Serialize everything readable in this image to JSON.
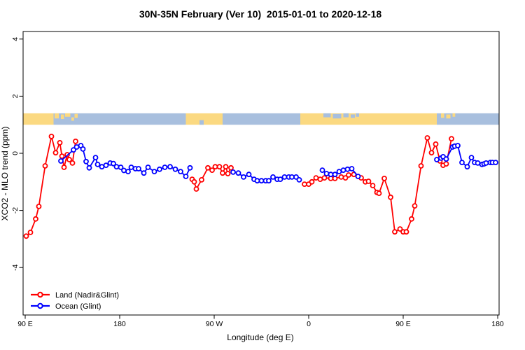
{
  "title": "30N-35N February (Ver 10)  2015-01-01 to 2020-12-18",
  "legend": {
    "items": [
      {
        "label": "Land (Nadir&Glint)",
        "color": "#ff0000"
      },
      {
        "label": "Ocean (Glint)",
        "color": "#0000ff"
      }
    ]
  },
  "chart_data": {
    "type": "line",
    "title": "30N-35N February (Ver 10)  2015-01-01 to 2020-12-18",
    "xlabel": "Longitude (deg E)",
    "ylabel": "XCO2 - MLO trend (ppm)",
    "xlim": [
      88,
      542
    ],
    "ylim": [
      -5.7,
      4.3
    ],
    "grid": false,
    "legend_position": "bottom-left-inside",
    "x_ticks": [
      {
        "lon": 90,
        "label": "90 E"
      },
      {
        "lon": 180,
        "label": "180"
      },
      {
        "lon": 270,
        "label": "90 W"
      },
      {
        "lon": 360,
        "label": "0"
      },
      {
        "lon": 450,
        "label": "90 E"
      },
      {
        "lon": 540,
        "label": "180"
      }
    ],
    "y_ticks": [
      {
        "v": 4,
        "label": "4"
      },
      {
        "v": 2,
        "label": "2"
      },
      {
        "v": 0,
        "label": "0"
      },
      {
        "v": -2,
        "label": "-2"
      },
      {
        "v": -4,
        "label": "-4"
      }
    ],
    "map_strip": {
      "description": "land/ocean mask band for 30N-35N latitude plotted between y=1.0 and y=1.4",
      "y_range": [
        1.0,
        1.4
      ],
      "land_color": "#fbd981",
      "ocean_color": "#a8bfde",
      "segments": [
        [
          88,
          117,
          "land"
        ],
        [
          117,
          243,
          "ocean"
        ],
        [
          243,
          278,
          "land"
        ],
        [
          278,
          352,
          "ocean"
        ],
        [
          352,
          482,
          "land"
        ],
        [
          482,
          541,
          "ocean"
        ]
      ],
      "land_patches": [
        [
          118,
          0.0,
          4,
          0.45
        ],
        [
          124,
          0.1,
          3,
          0.4
        ],
        [
          128,
          0.0,
          5,
          0.3
        ],
        [
          134,
          0.35,
          2.5,
          0.3
        ],
        [
          137,
          0.05,
          3,
          0.35
        ],
        [
          486,
          0.0,
          3,
          0.4
        ],
        [
          491,
          0.1,
          4,
          0.35
        ],
        [
          497,
          0.0,
          2.5,
          0.3
        ]
      ],
      "ocean_patches": [
        [
          374,
          0.0,
          7,
          0.35
        ],
        [
          383,
          0.05,
          8,
          0.4
        ],
        [
          393,
          0.0,
          5,
          0.35
        ],
        [
          400,
          0.1,
          4,
          0.3
        ],
        [
          405,
          0.0,
          3,
          0.3
        ],
        [
          256,
          0.6,
          4,
          0.4
        ]
      ]
    },
    "series": [
      {
        "name": "Land (Nadir&Glint)",
        "color": "#ff0000",
        "marker": "open-circle",
        "segments": [
          [
            [
              91,
              -2.9
            ],
            [
              95,
              -2.77
            ],
            [
              100,
              -2.3
            ],
            [
              103,
              -1.86
            ],
            [
              109,
              -0.44
            ],
            [
              115,
              0.59
            ],
            [
              119,
              0.02
            ],
            [
              123,
              0.37
            ],
            [
              125,
              -0.1
            ],
            [
              127,
              -0.49
            ],
            [
              130,
              -0.05
            ],
            [
              132,
              -0.22
            ],
            [
              135,
              -0.34
            ],
            [
              138,
              0.42
            ]
          ],
          [
            [
              249,
              -0.91
            ],
            [
              251,
              -1.0
            ],
            [
              253,
              -1.25
            ],
            [
              258,
              -0.93
            ],
            [
              264,
              -0.51
            ],
            [
              268,
              -0.59
            ],
            [
              271,
              -0.47
            ],
            [
              275,
              -0.47
            ],
            [
              278,
              -0.69
            ],
            [
              281,
              -0.47
            ],
            [
              283,
              -0.71
            ],
            [
              286,
              -0.51
            ]
          ],
          [
            [
              356,
              -1.08
            ],
            [
              360,
              -1.08
            ],
            [
              363,
              -1.0
            ],
            [
              367,
              -0.86
            ],
            [
              371,
              -0.91
            ],
            [
              375,
              -0.86
            ],
            [
              381,
              -0.88
            ],
            [
              385,
              -0.88
            ],
            [
              391,
              -0.83
            ],
            [
              395,
              -0.86
            ],
            [
              398,
              -0.76
            ],
            [
              403,
              -0.74
            ],
            [
              410,
              -0.86
            ],
            [
              414,
              -1.0
            ],
            [
              417,
              -0.98
            ],
            [
              421,
              -1.13
            ],
            [
              425,
              -1.37
            ],
            [
              427,
              -1.4
            ],
            [
              432,
              -0.88
            ],
            [
              438,
              -1.54
            ],
            [
              442,
              -2.75
            ],
            [
              447,
              -2.65
            ],
            [
              450,
              -2.75
            ],
            [
              453,
              -2.75
            ],
            [
              458,
              -2.3
            ],
            [
              461,
              -1.84
            ],
            [
              467,
              -0.44
            ],
            [
              473,
              0.54
            ],
            [
              477,
              0.02
            ],
            [
              481,
              0.32
            ],
            [
              485,
              -0.27
            ],
            [
              488,
              -0.42
            ],
            [
              491,
              -0.37
            ],
            [
              496,
              0.51
            ]
          ]
        ]
      },
      {
        "name": "Ocean (Glint)",
        "color": "#0000ff",
        "marker": "open-circle",
        "segments": [
          [
            [
              124,
              -0.27
            ],
            [
              136,
              0.12
            ],
            [
              139,
              0.22
            ],
            [
              143,
              0.27
            ],
            [
              145,
              0.15
            ],
            [
              148,
              -0.29
            ],
            [
              151,
              -0.51
            ],
            [
              157,
              -0.15
            ],
            [
              159,
              -0.39
            ],
            [
              163,
              -0.47
            ],
            [
              167,
              -0.42
            ],
            [
              171,
              -0.34
            ],
            [
              174,
              -0.36
            ],
            [
              177,
              -0.47
            ],
            [
              181,
              -0.49
            ],
            [
              184,
              -0.6
            ],
            [
              188,
              -0.64
            ],
            [
              191,
              -0.49
            ],
            [
              195,
              -0.54
            ],
            [
              198,
              -0.54
            ],
            [
              203,
              -0.69
            ],
            [
              207,
              -0.49
            ],
            [
              213,
              -0.64
            ],
            [
              218,
              -0.56
            ],
            [
              223,
              -0.49
            ],
            [
              228,
              -0.47
            ],
            [
              233,
              -0.56
            ],
            [
              238,
              -0.64
            ],
            [
              243,
              -0.81
            ],
            [
              247,
              -0.51
            ]
          ],
          [
            [
              288,
              -0.66
            ],
            [
              293,
              -0.69
            ],
            [
              298,
              -0.83
            ],
            [
              303,
              -0.74
            ],
            [
              308,
              -0.91
            ],
            [
              311,
              -0.96
            ],
            [
              315,
              -0.96
            ],
            [
              319,
              -0.96
            ],
            [
              322,
              -0.96
            ],
            [
              326,
              -0.83
            ],
            [
              330,
              -0.91
            ],
            [
              333,
              -0.91
            ],
            [
              337,
              -0.83
            ],
            [
              341,
              -0.83
            ],
            [
              344,
              -0.83
            ],
            [
              348,
              -0.83
            ],
            [
              351,
              -0.93
            ]
          ],
          [
            [
              373,
              -0.59
            ],
            [
              377,
              -0.71
            ],
            [
              381,
              -0.74
            ],
            [
              385,
              -0.74
            ],
            [
              389,
              -0.64
            ],
            [
              393,
              -0.59
            ],
            [
              397,
              -0.56
            ],
            [
              401,
              -0.54
            ],
            [
              407,
              -0.81
            ]
          ],
          [
            [
              482,
              -0.22
            ],
            [
              486,
              -0.17
            ],
            [
              488,
              -0.12
            ],
            [
              491,
              -0.2
            ],
            [
              497,
              0.22
            ],
            [
              499,
              0.25
            ],
            [
              502,
              0.27
            ],
            [
              506,
              -0.32
            ],
            [
              511,
              -0.47
            ],
            [
              515,
              -0.15
            ],
            [
              518,
              -0.32
            ],
            [
              521,
              -0.34
            ],
            [
              525,
              -0.39
            ],
            [
              527,
              -0.37
            ],
            [
              529,
              -0.34
            ],
            [
              533,
              -0.32
            ],
            [
              535,
              -0.32
            ],
            [
              538,
              -0.32
            ]
          ]
        ]
      }
    ]
  }
}
